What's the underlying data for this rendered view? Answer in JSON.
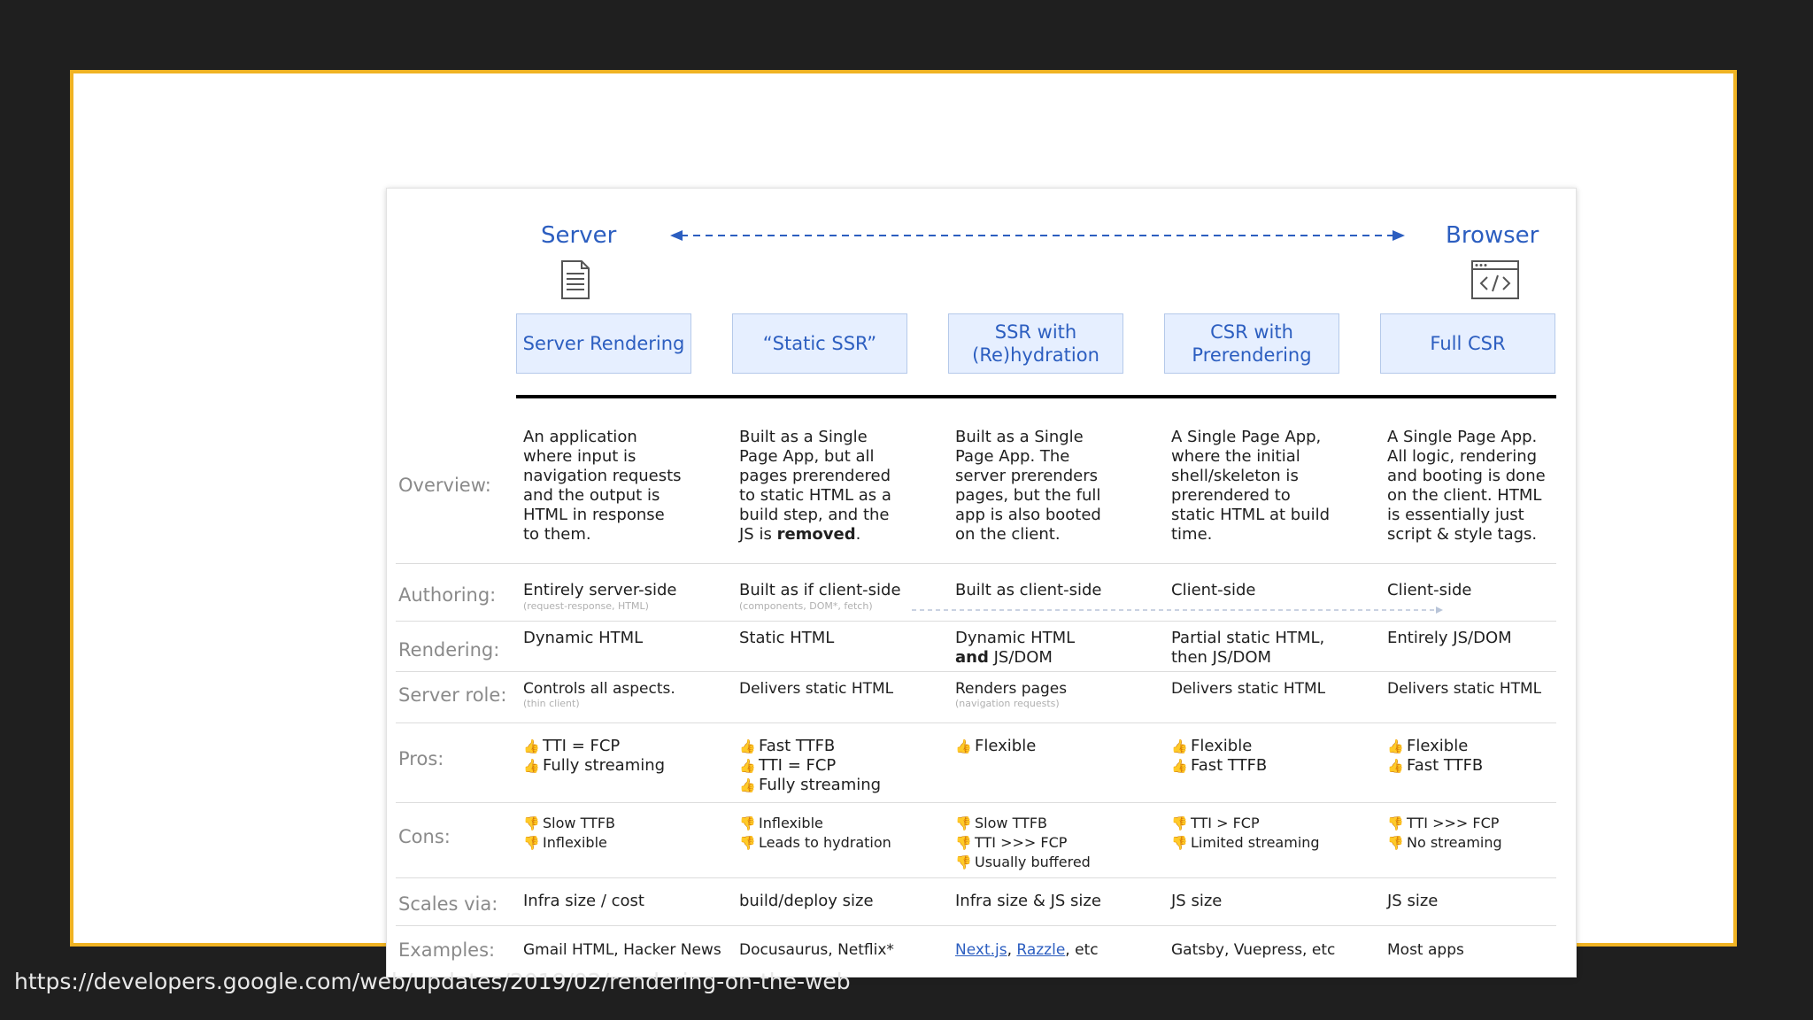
{
  "diagram": {
    "server_label": "Server",
    "browser_label": "Browser",
    "server_icon": "document-icon",
    "browser_icon": "code-window-icon",
    "approaches": [
      "Server Rendering",
      "“Static SSR”",
      "SSR with\n(Re)hydration",
      "CSR with\nPrerendering",
      "Full CSR"
    ],
    "rows": [
      {
        "label": "Overview:",
        "cells": [
          [
            {
              "t": "An application\nwhere input is\nnavigation requests\nand the output is\nHTML in response\nto them."
            }
          ],
          [
            {
              "t": "Built as a Single\nPage App, but all\npages prerendered\nto static HTML as a\nbuild step, and the\nJS is "
            },
            {
              "t": "removed",
              "b": true
            },
            {
              "t": "."
            }
          ],
          [
            {
              "t": "Built as a Single\nPage App. The\nserver prerenders\npages, but the full\napp is also booted\non the client."
            }
          ],
          [
            {
              "t": "A Single Page App,\nwhere the initial\nshell/skeleton is\nprerendered to\nstatic HTML at build\ntime."
            }
          ],
          [
            {
              "t": "A Single Page App.\nAll logic, rendering\nand booting is done\non the client. HTML\nis essentially just\nscript & style tags."
            }
          ]
        ]
      },
      {
        "label": "Authoring:",
        "cells": [
          [
            {
              "t": "Entirely server-side"
            }
          ],
          [
            {
              "t": "Built as if client-side"
            }
          ],
          [
            {
              "t": "Built as client-side"
            }
          ],
          [
            {
              "t": "Client-side"
            }
          ],
          [
            {
              "t": "Client-side"
            }
          ]
        ],
        "subs": [
          "(request-response, HTML)",
          "(components, DOM*, fetch)",
          "",
          "",
          ""
        ]
      },
      {
        "label": "Rendering:",
        "cells": [
          [
            {
              "t": "Dynamic HTML"
            }
          ],
          [
            {
              "t": "Static HTML"
            }
          ],
          [
            {
              "t": "Dynamic HTML\n"
            },
            {
              "t": "and",
              "b": true
            },
            {
              "t": " JS/DOM"
            }
          ],
          [
            {
              "t": "Partial static HTML,\nthen JS/DOM"
            }
          ],
          [
            {
              "t": "Entirely JS/DOM"
            }
          ]
        ]
      },
      {
        "label": "Server role:",
        "cells": [
          [
            {
              "t": "Controls all aspects."
            }
          ],
          [
            {
              "t": "Delivers static HTML"
            }
          ],
          [
            {
              "t": "Renders pages"
            }
          ],
          [
            {
              "t": "Delivers static HTML"
            }
          ],
          [
            {
              "t": "Delivers static HTML"
            }
          ]
        ],
        "subs": [
          "(thin client)",
          "",
          "(navigation requests)",
          "",
          ""
        ]
      },
      {
        "label": "Pros:",
        "lists": [
          [
            "TTI = FCP",
            "Fully streaming"
          ],
          [
            "Fast TTFB",
            "TTI = FCP",
            "Fully streaming"
          ],
          [
            "Flexible"
          ],
          [
            "Flexible",
            "Fast TTFB"
          ],
          [
            "Flexible",
            "Fast TTFB"
          ]
        ]
      },
      {
        "label": "Cons:",
        "lists": [
          [
            "Slow TTFB",
            "Inflexible"
          ],
          [
            "Inflexible",
            "Leads to hydration"
          ],
          [
            "Slow TTFB",
            "TTI >>> FCP",
            "Usually buffered"
          ],
          [
            "TTI > FCP",
            "Limited streaming"
          ],
          [
            "TTI >>> FCP",
            "No streaming"
          ]
        ]
      },
      {
        "label": "Scales via:",
        "cells": [
          [
            {
              "t": "Infra size / cost"
            }
          ],
          [
            {
              "t": "build/deploy size"
            }
          ],
          [
            {
              "t": "Infra size & JS size"
            }
          ],
          [
            {
              "t": "JS size"
            }
          ],
          [
            {
              "t": "JS size"
            }
          ]
        ]
      },
      {
        "label": "Examples:",
        "cells": [
          [
            {
              "t": "Gmail HTML, Hacker News"
            }
          ],
          [
            {
              "t": "Docusaurus, Netflix*"
            }
          ],
          [
            {
              "t": "Next.js",
              "l": true
            },
            {
              "t": ", "
            },
            {
              "t": "Razzle",
              "l": true
            },
            {
              "t": ", etc"
            }
          ],
          [
            {
              "t": "Gatsby, Vuepress, etc"
            }
          ],
          [
            {
              "t": "Most apps"
            }
          ]
        ]
      }
    ]
  },
  "colors": {
    "accent": "#2c5ec0",
    "frame": "#f0b323",
    "thumb": "#f2b600",
    "thumb_up_glyph": "👍",
    "thumb_down_glyph": "👎"
  },
  "source_url": "https://developers.google.com/web/updates/2019/02/rendering-on-the-web"
}
